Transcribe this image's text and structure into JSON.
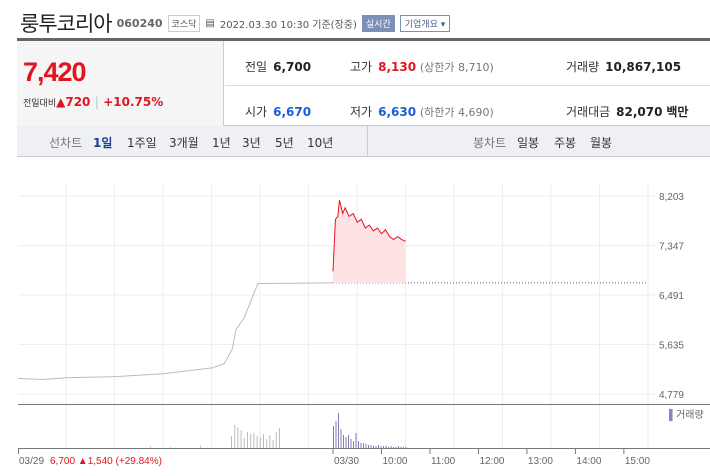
{
  "header": {
    "name": "룽투코리아",
    "code": "060240",
    "market": "코스닥",
    "datetime": "2022.03.30 10:30 기준(장중)",
    "realtime": "실시간",
    "company_info": "기업개요"
  },
  "quote": {
    "price": "7,420",
    "change_label": "전일대비",
    "change": "720",
    "change_pct": "+10.75%"
  },
  "stats": {
    "prev_label": "전일",
    "prev": "6,700",
    "open_label": "시가",
    "open": "6,670",
    "high_label": "고가",
    "high": "8,130",
    "upper_limit": "(상한가 8,710)",
    "low_label": "저가",
    "low": "6,630",
    "lower_limit": "(하한가 4,690)",
    "volume_label": "거래량",
    "volume": "10,867,105",
    "amount_label": "거래대금",
    "amount": "82,070",
    "amount_unit": "백만"
  },
  "tabs": {
    "line_label": "선차트",
    "line": [
      "1일",
      "1주일",
      "3개월",
      "1년",
      "3년",
      "5년",
      "10년"
    ],
    "candle_label": "봉차트",
    "candle": [
      "일봉",
      "주봉",
      "월봉"
    ],
    "active": "1일"
  },
  "colors": {
    "up": "#e2141f",
    "down": "#1a5dd6"
  },
  "chart_data": {
    "type": "line",
    "y_ticks": [
      "8,203",
      "7,347",
      "6,491",
      "5,635",
      "4,779"
    ],
    "ylim": [
      4779,
      8203
    ],
    "x_ticks": [
      "03/30",
      "10:00",
      "11:00",
      "12:00",
      "13:00",
      "14:00",
      "15:00"
    ],
    "volume_legend": "거래량",
    "prev_day": {
      "label": "03/29",
      "close": "6,700",
      "change": "1,540",
      "change_pct": "(+29.84%)",
      "series": [
        [
          "09:00",
          5050
        ],
        [
          "09:30",
          5030
        ],
        [
          "10:00",
          5060
        ],
        [
          "11:00",
          5080
        ],
        [
          "12:00",
          5130
        ],
        [
          "13:00",
          5230
        ],
        [
          "13:15",
          5300
        ],
        [
          "13:25",
          5550
        ],
        [
          "13:30",
          5900
        ],
        [
          "13:40",
          6100
        ],
        [
          "13:50",
          6450
        ],
        [
          "13:57",
          6690
        ],
        [
          "15:30",
          6700
        ]
      ]
    },
    "today": {
      "series": [
        [
          "09:00",
          6900
        ],
        [
          "09:03",
          7800
        ],
        [
          "09:06",
          7850
        ],
        [
          "09:08",
          8130
        ],
        [
          "09:12",
          7900
        ],
        [
          "09:15",
          8000
        ],
        [
          "09:20",
          7850
        ],
        [
          "09:25",
          7900
        ],
        [
          "09:30",
          7750
        ],
        [
          "09:35",
          7800
        ],
        [
          "09:40",
          7650
        ],
        [
          "09:45",
          7700
        ],
        [
          "09:50",
          7600
        ],
        [
          "09:55",
          7650
        ],
        [
          "10:00",
          7550
        ],
        [
          "10:05",
          7620
        ],
        [
          "10:10",
          7500
        ],
        [
          "10:15",
          7450
        ],
        [
          "10:20",
          7500
        ],
        [
          "10:25",
          7450
        ],
        [
          "10:30",
          7420
        ]
      ]
    },
    "reference_price": 6700
  }
}
